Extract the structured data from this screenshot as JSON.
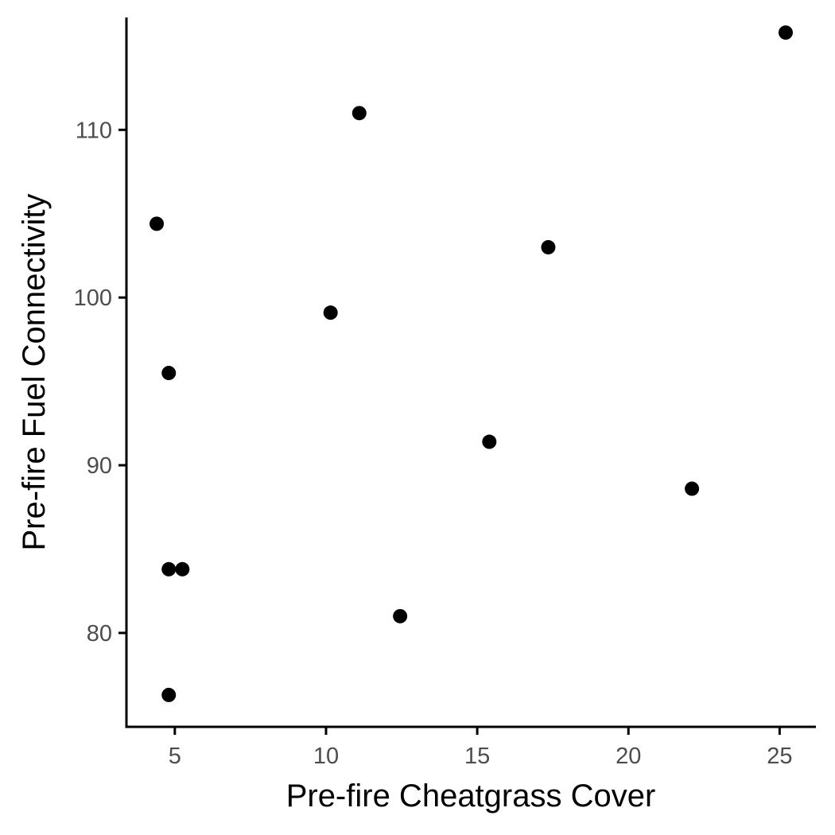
{
  "chart_data": {
    "type": "scatter",
    "xlabel": "Pre-fire Cheatgrass Cover",
    "ylabel": "Pre-fire Fuel Connectivity",
    "xlim": [
      3.4,
      26.2
    ],
    "ylim": [
      74.4,
      116.7
    ],
    "x_ticks": [
      5,
      10,
      15,
      20,
      25
    ],
    "y_ticks": [
      80,
      90,
      100,
      110
    ],
    "grid": false,
    "legend": "none",
    "point_color": "#000000",
    "points": [
      {
        "x": 4.4,
        "y": 104.4
      },
      {
        "x": 4.8,
        "y": 95.5
      },
      {
        "x": 4.8,
        "y": 83.8
      },
      {
        "x": 4.8,
        "y": 76.3
      },
      {
        "x": 5.25,
        "y": 83.8
      },
      {
        "x": 10.15,
        "y": 99.1
      },
      {
        "x": 11.1,
        "y": 111.0
      },
      {
        "x": 12.45,
        "y": 81.0
      },
      {
        "x": 15.4,
        "y": 91.4
      },
      {
        "x": 17.35,
        "y": 103.0
      },
      {
        "x": 22.1,
        "y": 88.6
      },
      {
        "x": 25.2,
        "y": 115.8
      }
    ]
  }
}
